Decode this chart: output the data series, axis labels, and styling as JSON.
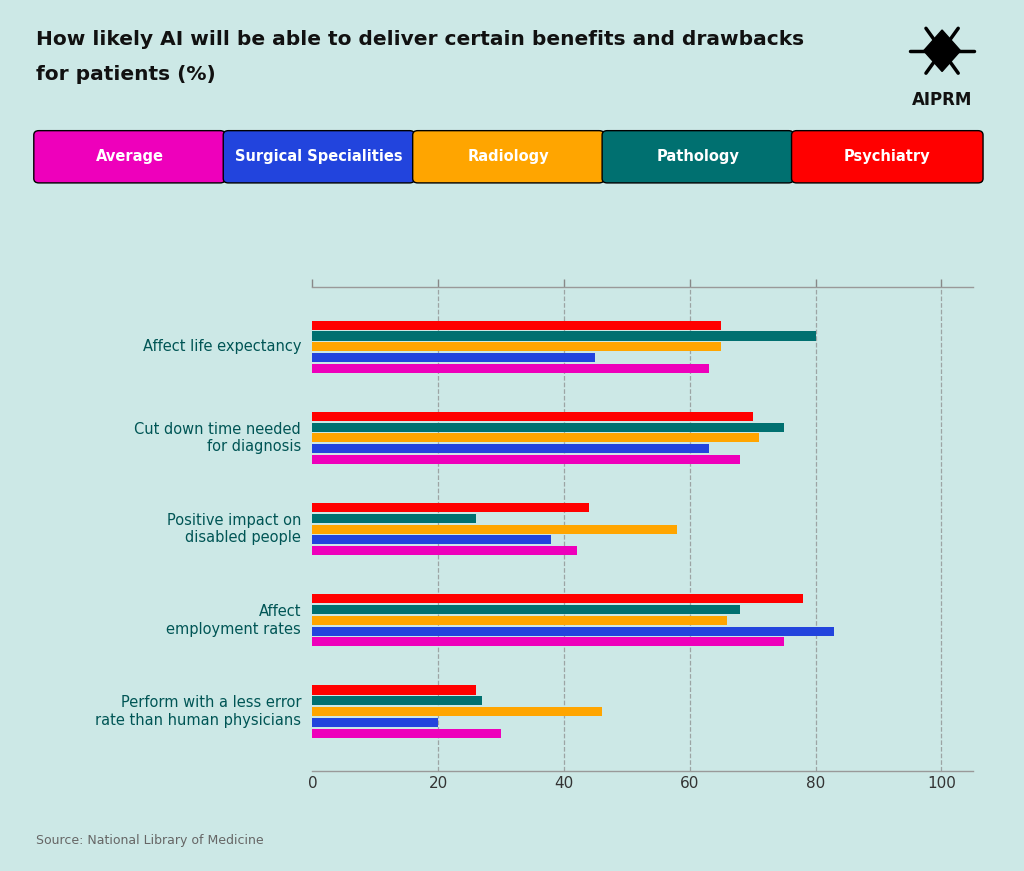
{
  "title_line1": "How likely AI will be able to deliver certain benefits and drawbacks",
  "title_line2": "for patients (%)",
  "source": "Source: National Library of Medicine",
  "background_color": "#cce8e6",
  "categories": [
    "Affect life expectancy",
    "Cut down time needed\nfor diagnosis",
    "Positive impact on\ndisabled people",
    "Affect\nemployment rates",
    "Perform with a less error\nrate than human physicians"
  ],
  "series": [
    {
      "name": "Psychiatry",
      "color": "#ff0000",
      "values": [
        65,
        70,
        44,
        78,
        26
      ]
    },
    {
      "name": "Pathology",
      "color": "#007070",
      "values": [
        80,
        75,
        26,
        68,
        27
      ]
    },
    {
      "name": "Radiology",
      "color": "#ffa500",
      "values": [
        65,
        71,
        58,
        66,
        46
      ]
    },
    {
      "name": "Surgical Specialities",
      "color": "#2244dd",
      "values": [
        45,
        63,
        38,
        83,
        20
      ]
    },
    {
      "name": "Average",
      "color": "#ee00bb",
      "values": [
        63,
        68,
        42,
        75,
        30
      ]
    }
  ],
  "legend": [
    {
      "name": "Average",
      "color": "#ee00bb"
    },
    {
      "name": "Surgical Specialities",
      "color": "#2244dd"
    },
    {
      "name": "Radiology",
      "color": "#ffa500"
    },
    {
      "name": "Pathology",
      "color": "#007070"
    },
    {
      "name": "Psychiatry",
      "color": "#ff0000"
    }
  ],
  "xlim": [
    0,
    100
  ],
  "xticks": [
    0,
    20,
    40,
    60,
    80,
    100
  ],
  "grid_lines": [
    20,
    40,
    60,
    80,
    100
  ]
}
